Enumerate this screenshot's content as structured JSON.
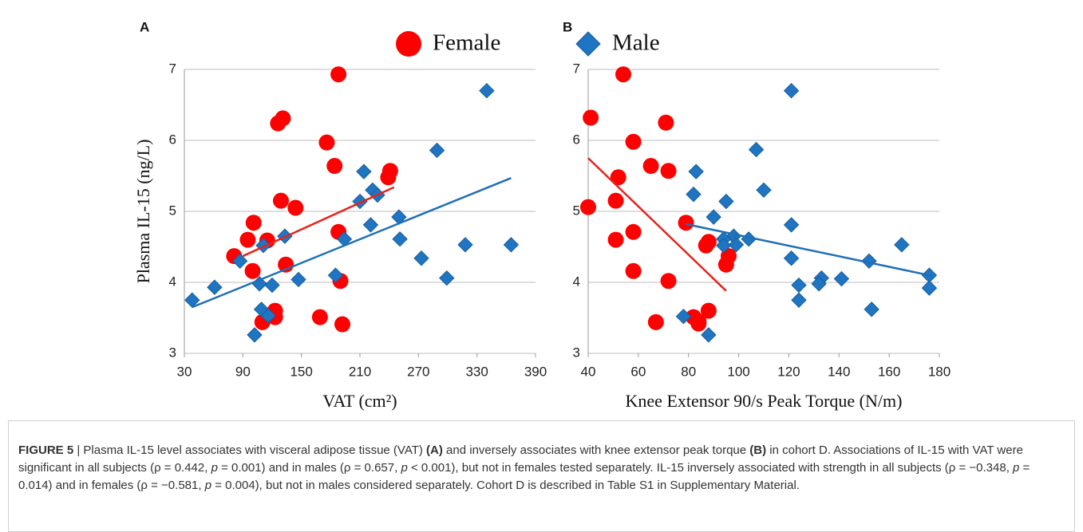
{
  "chart_data": [
    {
      "type": "scatter",
      "panel_label": "A",
      "ylabel": "Plasma IL-15 (ng/L)",
      "xlabel": "VAT (cm²)",
      "xlim": [
        30,
        390
      ],
      "xticks": [
        30,
        90,
        150,
        210,
        270,
        330,
        390
      ],
      "ylim": [
        3,
        7
      ],
      "yticks": [
        3,
        4,
        5,
        6,
        7
      ],
      "grid": true,
      "series": [
        {
          "name": "Female",
          "color": "#ff0000",
          "marker": "circle",
          "x": [
            188,
            126,
            131,
            176,
            184,
            241,
            239,
            129,
            144,
            101,
            188,
            95,
            115,
            81,
            134,
            100,
            190,
            123,
            123,
            110,
            169,
            192
          ],
          "values": [
            6.93,
            6.24,
            6.31,
            5.97,
            5.64,
            5.57,
            5.48,
            5.15,
            5.05,
            4.84,
            4.71,
            4.6,
            4.59,
            4.37,
            4.25,
            4.16,
            4.02,
            3.6,
            3.51,
            3.44,
            3.51,
            3.41
          ],
          "trend": {
            "x": [
              90,
              245
            ],
            "y": [
              4.37,
              5.34
            ]
          }
        },
        {
          "color": "#1f75c1",
          "marker": "diamond",
          "x": [
            38,
            61,
            87,
            107,
            111,
            133,
            120,
            147,
            109,
            116,
            102,
            185,
            194,
            210,
            214,
            223,
            228,
            221,
            250,
            251,
            273,
            299,
            318,
            289,
            340,
            365
          ],
          "values": [
            3.75,
            3.93,
            4.3,
            3.98,
            4.52,
            4.65,
            3.96,
            4.04,
            3.62,
            3.53,
            3.26,
            4.1,
            4.61,
            5.14,
            5.56,
            5.3,
            5.23,
            4.81,
            4.92,
            4.61,
            4.34,
            4.06,
            4.53,
            5.86,
            6.7,
            4.53
          ],
          "trend": {
            "x": [
              38,
              365
            ],
            "y": [
              3.65,
              5.47
            ]
          }
        }
      ]
    },
    {
      "type": "scatter",
      "panel_label": "B",
      "xlabel": "Knee Extensor 90/s Peak Torque (N/m)",
      "xlim": [
        40,
        180
      ],
      "xticks": [
        40,
        60,
        80,
        100,
        120,
        140,
        160,
        180
      ],
      "ylim": [
        3,
        7
      ],
      "yticks": [
        3,
        4,
        5,
        6,
        7
      ],
      "grid": true,
      "series": [
        {
          "color": "#ff0000",
          "marker": "circle",
          "x": [
            54,
            41,
            71,
            58,
            65,
            72,
            52,
            51,
            40,
            79,
            58,
            88,
            87,
            51,
            96,
            95,
            58,
            72,
            88,
            82,
            84,
            67,
            84
          ],
          "values": [
            6.93,
            6.32,
            6.25,
            5.98,
            5.64,
            5.57,
            5.48,
            5.15,
            5.06,
            4.84,
            4.71,
            4.57,
            4.52,
            4.6,
            4.37,
            4.25,
            4.16,
            4.02,
            3.6,
            3.51,
            3.45,
            3.44,
            3.42
          ],
          "trend": {
            "x": [
              40,
              95
            ],
            "y": [
              5.75,
              3.88
            ]
          }
        },
        {
          "name": "Male",
          "color": "#1f75c1",
          "marker": "diamond",
          "x": [
            121,
            107,
            83,
            110,
            82,
            95,
            90,
            121,
            98,
            104,
            94,
            99,
            94,
            165,
            121,
            152,
            176,
            141,
            133,
            124,
            132,
            176,
            124,
            153,
            78,
            88
          ],
          "values": [
            6.7,
            5.87,
            5.56,
            5.3,
            5.24,
            5.14,
            4.92,
            4.81,
            4.65,
            4.61,
            4.61,
            4.53,
            4.52,
            4.53,
            4.34,
            4.3,
            4.1,
            4.05,
            4.06,
            3.96,
            3.98,
            3.92,
            3.75,
            3.62,
            3.52,
            3.26
          ],
          "trend": {
            "x": [
              79,
              176
            ],
            "y": [
              4.82,
              4.1
            ]
          }
        }
      ]
    }
  ],
  "caption": [
    {
      "text": "FIGURE 5",
      "style": "bold"
    },
    {
      "text": " | Plasma IL-15 level associates with visceral adipose tissue (VAT) "
    },
    {
      "text": "(A)",
      "style": "bold"
    },
    {
      "text": " and inversely associates with knee extensor peak torque "
    },
    {
      "text": "(B)",
      "style": "bold"
    },
    {
      "text": " in cohort D. Associations of IL-15 with VAT were significant in all subjects (ρ = 0.442, "
    },
    {
      "text": "p",
      "style": "italic"
    },
    {
      "text": " = 0.001) and in males (ρ = 0.657, "
    },
    {
      "text": "p",
      "style": "italic"
    },
    {
      "text": " < 0.001), but not in females tested separately. IL-15 inversely associated with strength in all subjects (ρ = −0.348, "
    },
    {
      "text": "p",
      "style": "italic"
    },
    {
      "text": " = 0.014) and in females (ρ = −0.581, "
    },
    {
      "text": "p",
      "style": "italic"
    },
    {
      "text": " = 0.004), but not in males considered separately. Cohort D is described in Table S1 in Supplementary Material."
    }
  ]
}
